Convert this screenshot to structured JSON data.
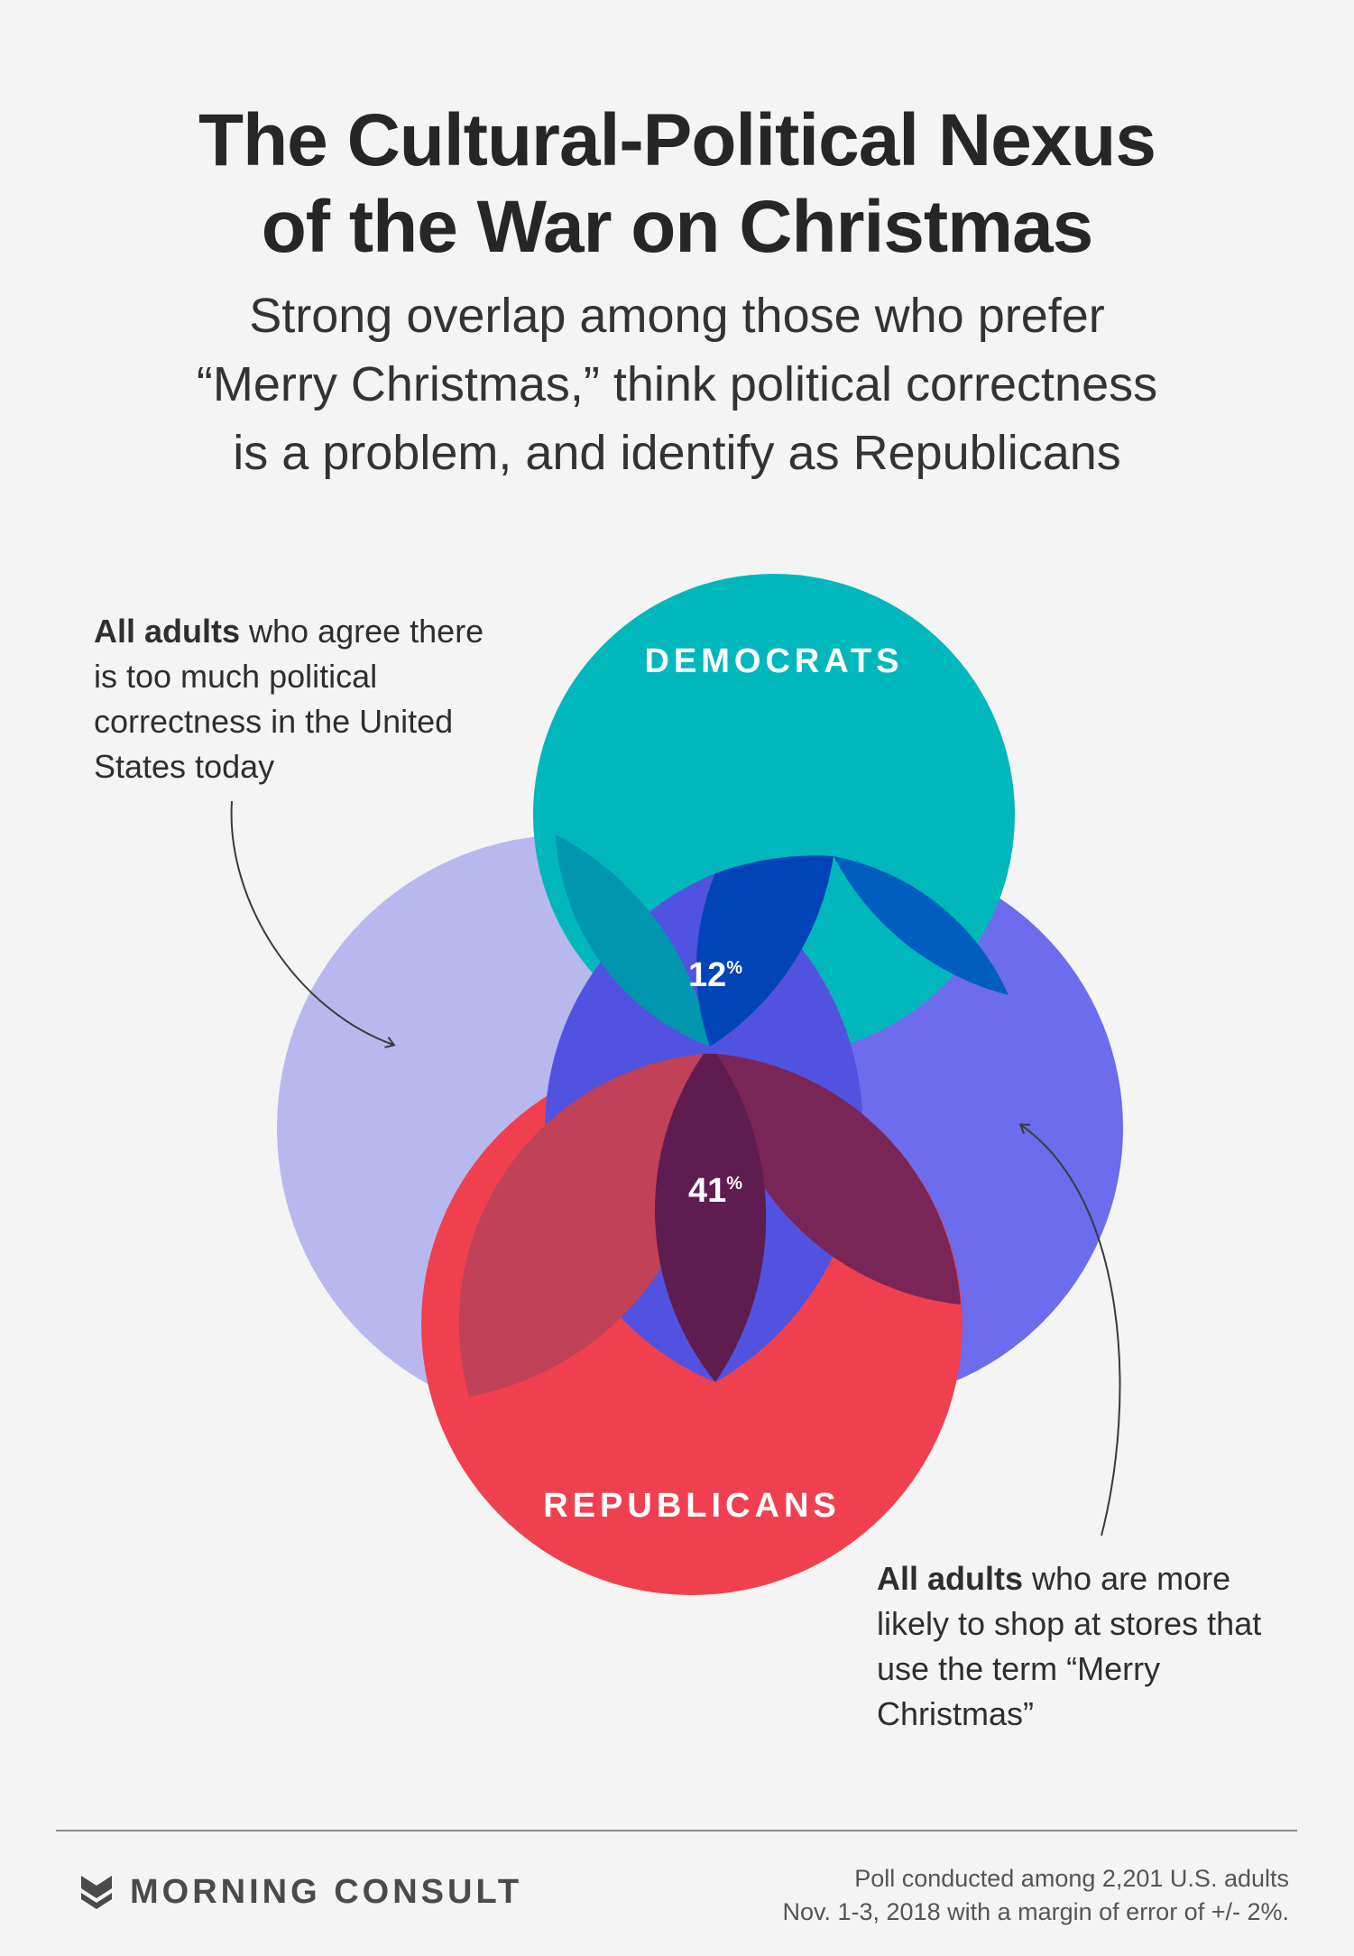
{
  "title_line1": "The Cultural-Political Nexus",
  "title_line2": "of the War on Christmas",
  "subtitle_line1": "Strong overlap among those who prefer",
  "subtitle_line2": "“Merry Christmas,” think political correctness",
  "subtitle_line3": "is a problem, and identify as Republicans",
  "sets": {
    "democrats": {
      "label": "DEMOCRATS",
      "color": "#00b8bc"
    },
    "republicans": {
      "label": "REPUBLICANS",
      "color": "#f0404f"
    },
    "political_correctness": {
      "color": "#b9b8ee"
    },
    "merry_christmas": {
      "color": "#6c6ced"
    }
  },
  "intersections": {
    "dem_pc_mc": {
      "value": "12",
      "unit": "%"
    },
    "rep_pc_mc": {
      "value": "41",
      "unit": "%"
    }
  },
  "note_left": {
    "bold": "All adults",
    "rest": " who agree there is too much political correctness in the United States today"
  },
  "note_right": {
    "bold": "All adults",
    "rest": " who are more likely to shop at stores that use the term “Merry Christmas”"
  },
  "brand": "MORNING CONSULT",
  "footnote_line1": "Poll conducted among 2,201 U.S. adults",
  "footnote_line2": "Nov. 1-3, 2018 with a margin of error of +/- 2%."
}
